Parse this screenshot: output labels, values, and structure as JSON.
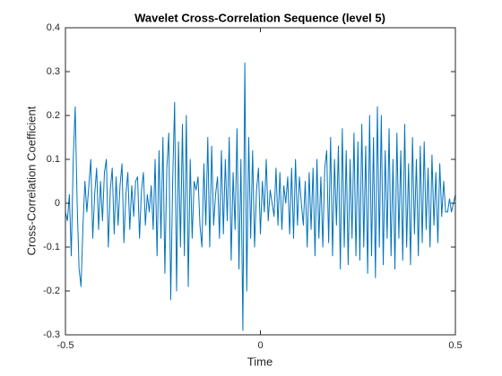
{
  "chart_data": {
    "type": "line",
    "title": "Wavelet Cross-Correlation Sequence (level 5)",
    "x_label": "Time",
    "y_label": "Cross-Correlation Coefficient",
    "color": "#0072bd",
    "xlim": [
      -0.5,
      0.5
    ],
    "xticks": [
      -0.5,
      0,
      0.5
    ],
    "ylim": [
      -0.3,
      0.4
    ],
    "yticks": [
      -0.3,
      -0.2,
      -0.1,
      0,
      0.1,
      0.2,
      0.3,
      0.4
    ],
    "grid": false,
    "x": [
      -0.5,
      -0.495,
      -0.49,
      -0.485,
      -0.48,
      -0.475,
      -0.47,
      -0.465,
      -0.46,
      -0.455,
      -0.45,
      -0.445,
      -0.44,
      -0.435,
      -0.43,
      -0.425,
      -0.42,
      -0.415,
      -0.41,
      -0.405,
      -0.4,
      -0.395,
      -0.39,
      -0.385,
      -0.38,
      -0.375,
      -0.37,
      -0.365,
      -0.36,
      -0.355,
      -0.35,
      -0.345,
      -0.34,
      -0.335,
      -0.33,
      -0.325,
      -0.32,
      -0.315,
      -0.31,
      -0.305,
      -0.3,
      -0.295,
      -0.29,
      -0.285,
      -0.28,
      -0.275,
      -0.27,
      -0.265,
      -0.26,
      -0.255,
      -0.25,
      -0.245,
      -0.24,
      -0.235,
      -0.23,
      -0.225,
      -0.22,
      -0.215,
      -0.21,
      -0.205,
      -0.2,
      -0.195,
      -0.19,
      -0.185,
      -0.18,
      -0.175,
      -0.17,
      -0.165,
      -0.16,
      -0.155,
      -0.15,
      -0.145,
      -0.14,
      -0.135,
      -0.13,
      -0.125,
      -0.12,
      -0.115,
      -0.11,
      -0.105,
      -0.1,
      -0.095,
      -0.09,
      -0.085,
      -0.08,
      -0.075,
      -0.07,
      -0.065,
      -0.06,
      -0.055,
      -0.05,
      -0.045,
      -0.04,
      -0.035,
      -0.03,
      -0.025,
      -0.02,
      -0.015,
      -0.01,
      -0.005,
      0,
      0.005,
      0.01,
      0.015,
      0.02,
      0.025,
      0.03,
      0.035,
      0.04,
      0.045,
      0.05,
      0.055,
      0.06,
      0.065,
      0.07,
      0.075,
      0.08,
      0.085,
      0.09,
      0.095,
      0.1,
      0.105,
      0.11,
      0.115,
      0.12,
      0.125,
      0.13,
      0.135,
      0.14,
      0.145,
      0.15,
      0.155,
      0.16,
      0.165,
      0.17,
      0.175,
      0.18,
      0.185,
      0.19,
      0.195,
      0.2,
      0.205,
      0.21,
      0.215,
      0.22,
      0.225,
      0.23,
      0.235,
      0.24,
      0.245,
      0.25,
      0.255,
      0.26,
      0.265,
      0.27,
      0.275,
      0.28,
      0.285,
      0.29,
      0.295,
      0.3,
      0.305,
      0.31,
      0.315,
      0.32,
      0.325,
      0.33,
      0.335,
      0.34,
      0.345,
      0.35,
      0.355,
      0.36,
      0.365,
      0.37,
      0.375,
      0.38,
      0.385,
      0.39,
      0.395,
      0.4,
      0.405,
      0.41,
      0.415,
      0.42,
      0.425,
      0.43,
      0.435,
      0.44,
      0.445,
      0.45,
      0.455,
      0.46,
      0.465,
      0.47,
      0.475,
      0.48,
      0.485,
      0.49,
      0.495,
      0.5
    ],
    "values": [
      -0.02,
      -0.04,
      0.02,
      -0.12,
      0.1,
      0.22,
      0.0,
      -0.15,
      -0.19,
      -0.05,
      0.05,
      -0.02,
      0.04,
      0.1,
      -0.08,
      0.02,
      0.08,
      -0.06,
      0.05,
      -0.04,
      0.07,
      0.1,
      -0.1,
      0.03,
      0.08,
      -0.07,
      0.06,
      -0.05,
      0.04,
      0.09,
      -0.09,
      0.02,
      0.07,
      -0.06,
      0.04,
      -0.03,
      0.05,
      0.06,
      -0.08,
      0.03,
      0.07,
      -0.05,
      0.02,
      -0.02,
      0.04,
      -0.06,
      0.1,
      -0.12,
      0.12,
      -0.08,
      0.15,
      -0.16,
      0.08,
      0.16,
      -0.22,
      0.05,
      0.23,
      -0.2,
      0.14,
      -0.1,
      0.18,
      -0.12,
      0.2,
      -0.19,
      0.1,
      -0.08,
      0.05,
      0.03,
      0.06,
      -0.05,
      -0.1,
      0.09,
      -0.05,
      0.15,
      -0.1,
      0.13,
      -0.05,
      0.02,
      0.06,
      -0.08,
      0.12,
      -0.07,
      0.1,
      -0.04,
      0.15,
      -0.13,
      0.07,
      -0.06,
      0.17,
      -0.15,
      0.1,
      -0.29,
      0.32,
      -0.2,
      0.15,
      -0.08,
      0.12,
      -0.1,
      0.03,
      0.08,
      -0.07,
      0.05,
      -0.02,
      0.1,
      -0.04,
      0.03,
      0.0,
      -0.03,
      0.08,
      -0.05,
      0.07,
      -0.06,
      0.04,
      0.0,
      0.06,
      -0.07,
      0.08,
      -0.08,
      0.1,
      -0.05,
      0.06,
      0.0,
      -0.05,
      0.05,
      -0.1,
      0.07,
      -0.06,
      0.08,
      -0.12,
      0.1,
      -0.08,
      0.06,
      -0.1,
      0.08,
      0.12,
      -0.09,
      0.15,
      -0.12,
      0.1,
      -0.05,
      0.13,
      -0.15,
      0.17,
      -0.1,
      0.12,
      -0.14,
      0.1,
      -0.08,
      0.16,
      -0.12,
      0.14,
      -0.13,
      0.18,
      -0.1,
      0.13,
      -0.16,
      0.2,
      -0.12,
      0.15,
      -0.17,
      0.22,
      -0.1,
      0.2,
      -0.14,
      0.12,
      -0.08,
      0.17,
      -0.12,
      0.1,
      -0.15,
      0.16,
      -0.08,
      0.12,
      -0.13,
      0.18,
      -0.1,
      0.09,
      -0.14,
      0.15,
      -0.07,
      0.1,
      -0.12,
      0.13,
      -0.09,
      0.14,
      -0.06,
      0.08,
      -0.1,
      0.11,
      -0.05,
      0.07,
      -0.09,
      0.09,
      -0.03,
      0.05,
      -0.02,
      -0.02,
      0.01,
      -0.02,
      0.0,
      0.02
    ]
  }
}
